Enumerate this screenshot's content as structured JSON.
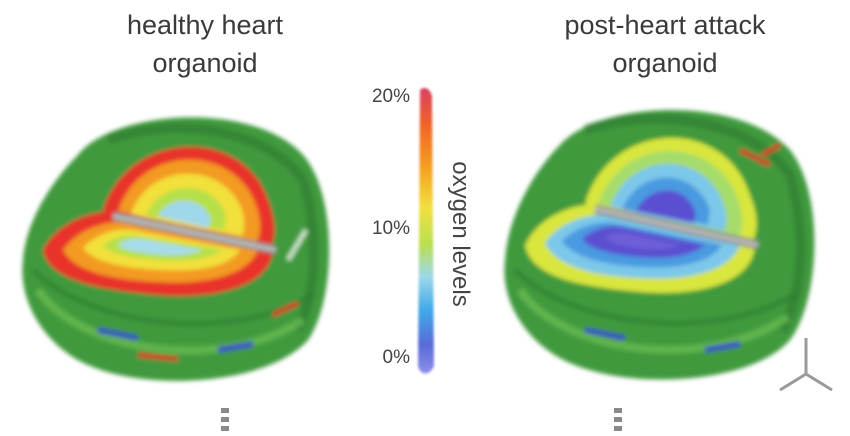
{
  "panels": {
    "left": {
      "title_line1": "healthy heart",
      "title_line2": "organoid"
    },
    "right": {
      "title_line1": "post-heart attack",
      "title_line2": "organoid"
    }
  },
  "legend": {
    "label": "oxygen levels",
    "ticks": [
      "20%",
      "10%",
      "0%"
    ],
    "colors": [
      "#d94060",
      "#f0602a",
      "#f5a020",
      "#f2e040",
      "#b8e050",
      "#9ed8ea",
      "#40a8e8",
      "#5a6ad8",
      "#8f90e8"
    ]
  },
  "colors": {
    "outer_tissue": "#3f9a3c",
    "oxygen_high": "#e8322a",
    "oxygen_mid": "#f5d22a",
    "oxygen_low": "#55b8ea",
    "oxygen_min": "#5a4fd0"
  }
}
